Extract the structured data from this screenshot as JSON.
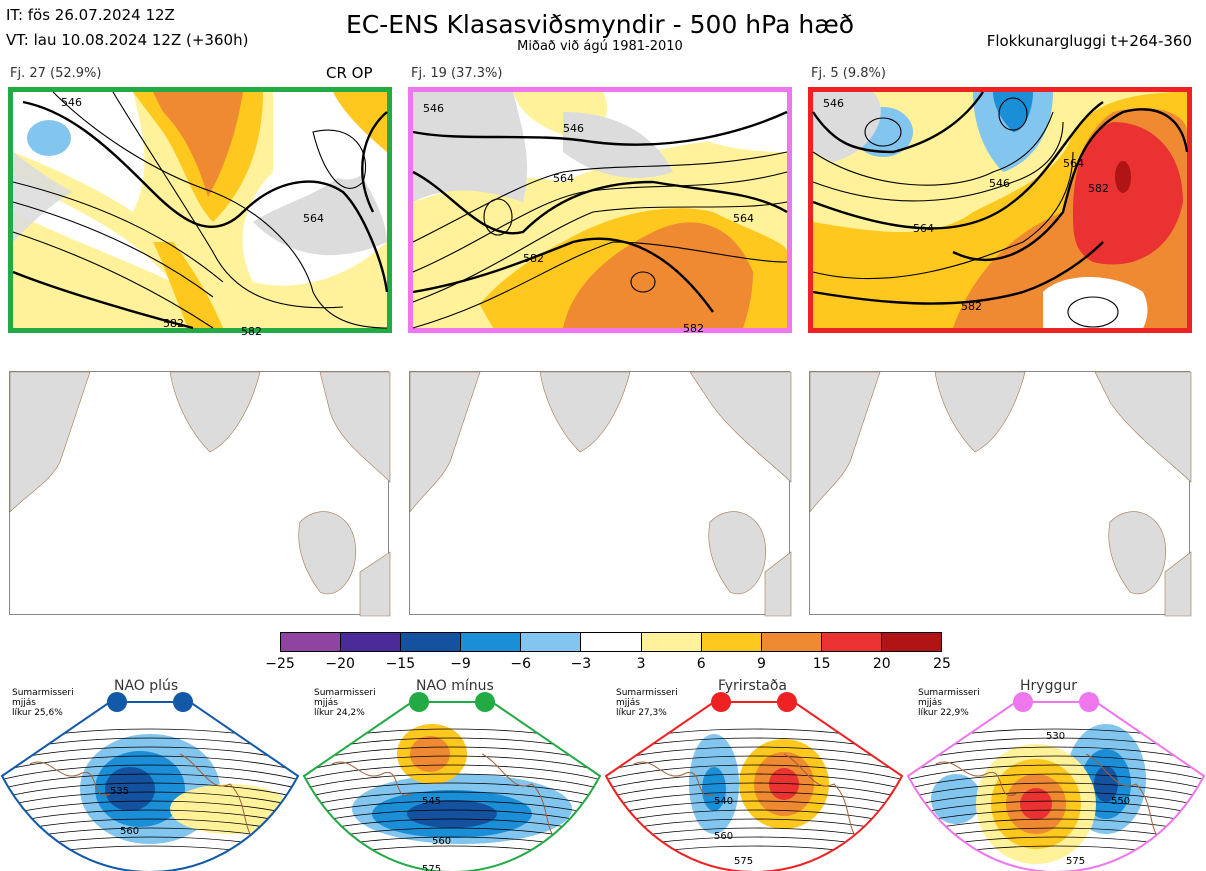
{
  "header": {
    "it": "IT: fös 26.07.2024 12Z",
    "vt": "VT: lau 10.08.2024 12Z  (+360h)",
    "title": "EC-ENS Klasasviðsmyndir - 500 hPa hæð",
    "subtitle": "Miðað við ágú 1981-2010",
    "window": "Flokkunargluggi t+264-360"
  },
  "clusters": [
    {
      "label": "Fj. 27 (52.9%)",
      "tag": "CR OP",
      "border": "#22aa44",
      "contours": [
        {
          "v": "546"
        },
        {
          "v": "564"
        },
        {
          "v": "582"
        },
        {
          "v": "582"
        }
      ]
    },
    {
      "label": "Fj. 19 (37.3%)",
      "tag": "",
      "border": "#ee77ee",
      "contours": [
        {
          "v": "546"
        },
        {
          "v": "546"
        },
        {
          "v": "564"
        },
        {
          "v": "564"
        },
        {
          "v": "582"
        },
        {
          "v": "582"
        }
      ]
    },
    {
      "label": "Fj. 5 (9.8%)",
      "tag": "",
      "border": "#ee2222",
      "contours": [
        {
          "v": "546"
        },
        {
          "v": "546"
        },
        {
          "v": "564"
        },
        {
          "v": "564"
        },
        {
          "v": "582"
        },
        {
          "v": "582"
        }
      ]
    }
  ],
  "colorbar": {
    "ticks": [
      "−25",
      "−20",
      "−15",
      "−9",
      "−6",
      "−3",
      "3",
      "6",
      "9",
      "15",
      "20",
      "25"
    ],
    "colors": [
      "#8e44a0",
      "#4b2a9a",
      "#1452a0",
      "#1a8fd8",
      "#82c5ee",
      "#ffffff",
      "#fff29a",
      "#ffc81e",
      "#f08a32",
      "#ea3232",
      "#b01414"
    ]
  },
  "regimes": [
    {
      "title": "NAO plús",
      "info": "Sumarmisseri\nmjjás\nlíkur 25,6%",
      "color": "#1259a8",
      "labels": [
        "535",
        "560"
      ]
    },
    {
      "title": "NAO mínus",
      "info": "Sumarmisseri\nmjjás\nlíkur 24,2%",
      "color": "#22aa44",
      "labels": [
        "545",
        "560",
        "575"
      ]
    },
    {
      "title": "Fyrirstaða",
      "info": "Sumarmisseri\nmjjás\nlíkur 27,3%",
      "color": "#ee2222",
      "labels": [
        "540",
        "560",
        "575"
      ]
    },
    {
      "title": "Hryggur",
      "info": "Sumarmisseri\nmjjás\nlíkur 22,9%",
      "color": "#ee77ee",
      "labels": [
        "530",
        "550",
        "575"
      ]
    }
  ]
}
